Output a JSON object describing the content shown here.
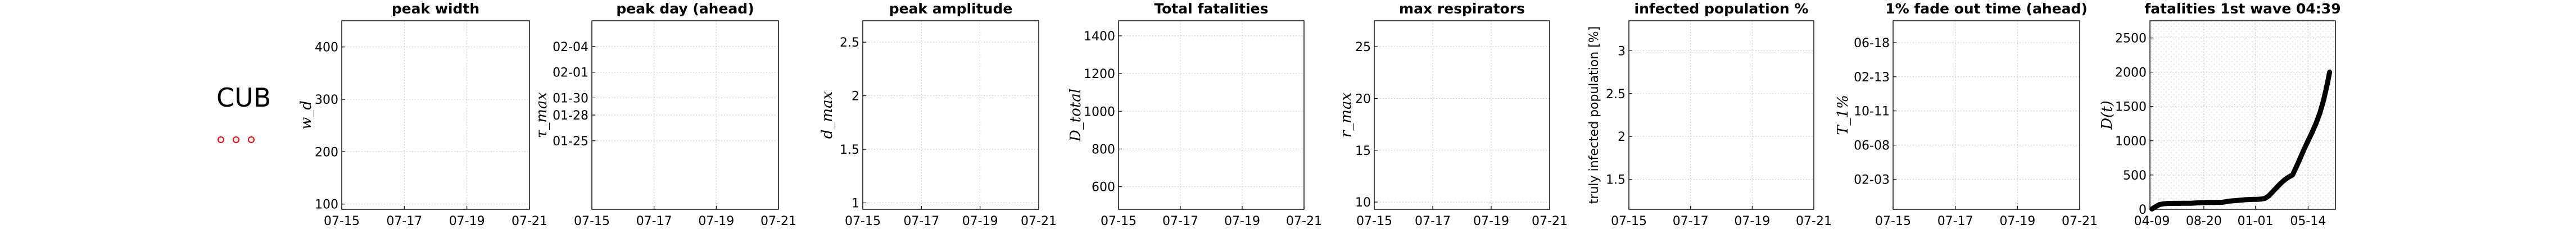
{
  "country": {
    "code": "CUB",
    "marker_color": "#ff0000"
  },
  "chart_data": [
    {
      "type": "line",
      "title": "peak width",
      "ylabel": "w_d",
      "yticks": [
        "100",
        "200",
        "300",
        "400"
      ],
      "ytick_values": [
        100,
        200,
        300,
        400
      ],
      "ylim": [
        90,
        450
      ],
      "xticks": [
        "07-15",
        "07-17",
        "07-19",
        "07-21"
      ],
      "series": []
    },
    {
      "type": "line",
      "title": "peak day (ahead)",
      "ylabel": "τ_max",
      "yticks": [
        "01-25",
        "01-28",
        "01-30",
        "02-01",
        "02-04"
      ],
      "ytick_values": [
        0,
        3,
        5,
        8,
        11
      ],
      "ylim": [
        -8.0,
        14.0
      ],
      "xticks": [
        "07-15",
        "07-17",
        "07-19",
        "07-21"
      ],
      "series": []
    },
    {
      "type": "line",
      "title": "peak amplitude",
      "ylabel": "d_max",
      "yticks": [
        "1",
        "1.5",
        "2",
        "2.5"
      ],
      "ytick_values": [
        1,
        1.5,
        2,
        2.5
      ],
      "ylim": [
        0.94,
        2.7
      ],
      "xticks": [
        "07-15",
        "07-17",
        "07-19",
        "07-21"
      ],
      "series": []
    },
    {
      "type": "line",
      "title": "Total fatalities",
      "ylabel": "D_total",
      "yticks": [
        "600",
        "800",
        "1000",
        "1200",
        "1400"
      ],
      "ytick_values": [
        600,
        800,
        1000,
        1200,
        1400
      ],
      "ylim": [
        480,
        1480
      ],
      "xticks": [
        "07-15",
        "07-17",
        "07-19",
        "07-21"
      ],
      "series": []
    },
    {
      "type": "line",
      "title": "max respirators",
      "ylabel": "r_max",
      "yticks": [
        "10",
        "15",
        "20",
        "25"
      ],
      "ytick_values": [
        10,
        15,
        20,
        25
      ],
      "ylim": [
        9.3,
        27.5
      ],
      "xticks": [
        "07-15",
        "07-17",
        "07-19",
        "07-21"
      ],
      "series": []
    },
    {
      "type": "line",
      "title": "infected population %",
      "ylabel": "truly infected population [%]",
      "yticks": [
        "1.5",
        "2",
        "2.5",
        "3"
      ],
      "ytick_values": [
        1.5,
        2,
        2.5,
        3
      ],
      "ylim": [
        1.15,
        3.35
      ],
      "xticks": [
        "07-15",
        "07-17",
        "07-19",
        "07-21"
      ],
      "series": []
    },
    {
      "type": "line",
      "title": "1% fade out time (ahead)",
      "ylabel": "T_1%",
      "yticks": [
        "02-03",
        "06-08",
        "10-11",
        "02-13",
        "06-18"
      ],
      "ytick_values": [
        0,
        125,
        250,
        375,
        500
      ],
      "ylim": [
        -110,
        580
      ],
      "xticks": [
        "07-15",
        "07-17",
        "07-19",
        "07-21"
      ],
      "series": []
    },
    {
      "type": "line",
      "title": "fatalities 1st wave 04:39",
      "ylabel": "D(t)",
      "yticks": [
        "0",
        "500",
        "1000",
        "1500",
        "2000",
        "2500"
      ],
      "ytick_values": [
        0,
        500,
        1000,
        1500,
        2000,
        2500
      ],
      "ylim": [
        0,
        2750
      ],
      "xticks": [
        "04-09",
        "08-20",
        "01-01",
        "05-14"
      ],
      "xtick_values": [
        0,
        133,
        265,
        400
      ],
      "xlim": [
        -5,
        470
      ],
      "series": [
        {
          "x": [
            0,
            10,
            20,
            30,
            40,
            50,
            60,
            70,
            80,
            90,
            100,
            120,
            140,
            160,
            180,
            200,
            220,
            240,
            260,
            270,
            280,
            290,
            300,
            310,
            320,
            330,
            340,
            350,
            360,
            370,
            380,
            390,
            400,
            410,
            420,
            430,
            440,
            450,
            455
          ],
          "values": [
            5,
            40,
            70,
            80,
            85,
            86,
            87,
            87,
            88,
            88,
            88,
            95,
            100,
            100,
            102,
            120,
            130,
            140,
            145,
            146,
            150,
            160,
            200,
            260,
            320,
            380,
            430,
            470,
            500,
            620,
            750,
            880,
            1000,
            1120,
            1250,
            1400,
            1600,
            1850,
            2000
          ]
        }
      ]
    }
  ]
}
